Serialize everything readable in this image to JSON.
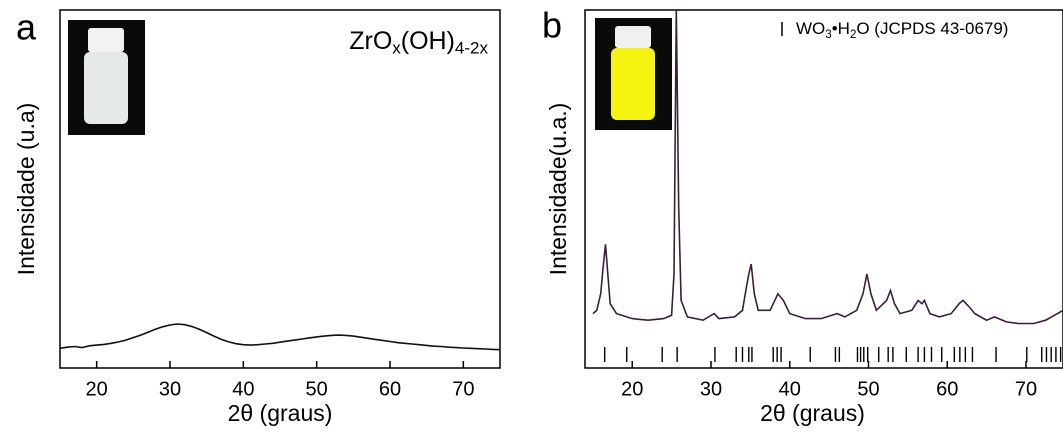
{
  "chart_data": [
    {
      "type": "line",
      "panel_label": "a",
      "x_label": "2θ (graus)",
      "y_label": "Intensidade (u.a)",
      "annotation": [
        "ZrO",
        "x",
        "(OH)",
        "4-2x"
      ],
      "color": "#111111",
      "xlim": [
        15,
        75
      ],
      "ylim": [
        0,
        100
      ],
      "xticks": [
        20,
        30,
        40,
        50,
        60,
        70
      ],
      "x": [
        15,
        16,
        17,
        18,
        19,
        20,
        21,
        22,
        23,
        24,
        25,
        26,
        27,
        28,
        29,
        30,
        31,
        32,
        33,
        34,
        35,
        36,
        37,
        38,
        39,
        40,
        41,
        42,
        43,
        44,
        45,
        46,
        47,
        48,
        49,
        50,
        51,
        52,
        53,
        54,
        55,
        56,
        57,
        58,
        59,
        60,
        61,
        62,
        63,
        64,
        65,
        66,
        67,
        68,
        69,
        70,
        71,
        72,
        73,
        74,
        75
      ],
      "values": [
        5.5,
        5.8,
        6,
        5.7,
        6.2,
        6.4,
        6.6,
        6.9,
        7.3,
        7.8,
        8.5,
        9.2,
        10,
        10.8,
        11.5,
        12,
        12.3,
        12.1,
        11.6,
        10.8,
        9.9,
        8.9,
        8,
        7.3,
        6.8,
        6.5,
        6.4,
        6.5,
        6.7,
        6.9,
        7.2,
        7.5,
        7.8,
        8.1,
        8.4,
        8.7,
        8.9,
        9.1,
        9.2,
        9.1,
        8.9,
        8.6,
        8.3,
        8,
        7.7,
        7.4,
        7.1,
        6.9,
        6.7,
        6.5,
        6.3,
        6.1,
        6,
        5.8,
        5.7,
        5.6,
        5.5,
        5.4,
        5.3,
        5.2,
        5.1
      ]
    },
    {
      "type": "line",
      "panel_label": "b",
      "x_label": "2θ (graus)",
      "y_label": "Intensidade(u.a.)",
      "annotation": [
        "WO",
        "3",
        "•H",
        "2",
        "O (JCPDS 43-0679)"
      ],
      "color": "#3a1f3a",
      "xlim": [
        14,
        74.7
      ],
      "ylim": [
        0,
        100
      ],
      "xticks": [
        20,
        30,
        40,
        50,
        60,
        70
      ],
      "x": [
        15,
        15.5,
        16,
        16.3,
        16.6,
        16.9,
        17.2,
        18,
        20,
        22,
        24,
        25,
        25.3,
        25.6,
        25.9,
        26.2,
        27,
        29,
        30.4,
        31,
        33,
        34,
        34.5,
        34.8,
        35.1,
        35.5,
        36,
        37.5,
        38.5,
        39.2,
        40,
        42,
        44,
        46,
        47,
        48.5,
        49.3,
        49.8,
        50.3,
        51,
        52.3,
        52.8,
        53.3,
        54,
        55.5,
        56.3,
        56.8,
        57.1,
        57.8,
        59,
        60.5,
        61.5,
        62,
        62.8,
        63.5,
        65,
        66,
        67.5,
        69,
        71,
        72.5,
        74,
        74.7
      ],
      "values": [
        8,
        9,
        14,
        22,
        29,
        20,
        11,
        8,
        6.5,
        6,
        6.5,
        7.5,
        20,
        100,
        40,
        12,
        7,
        6,
        8,
        6.5,
        7,
        9,
        16,
        20,
        23,
        14,
        9,
        9,
        14,
        12,
        8,
        6.5,
        6.5,
        8,
        7,
        9,
        14,
        20,
        14,
        9,
        12,
        15,
        11,
        8,
        9,
        12,
        11,
        12,
        8,
        7,
        8,
        11,
        12,
        10,
        8,
        6,
        7,
        5.5,
        5,
        5,
        6,
        8,
        9
      ],
      "reference_peaks": [
        16.5,
        19.3,
        23.8,
        25.7,
        30.5,
        33.2,
        34.0,
        34.8,
        35.2,
        37.9,
        38.4,
        38.9,
        42.6,
        45.8,
        46.3,
        48.6,
        49.0,
        49.4,
        49.9,
        51.3,
        52.5,
        53.1,
        54.8,
        56.3,
        57.1,
        58.0,
        59.3,
        60.9,
        61.6,
        62.3,
        63.2,
        66.2,
        70.1,
        72.0,
        72.6,
        73.2,
        73.8,
        74.4
      ]
    }
  ]
}
